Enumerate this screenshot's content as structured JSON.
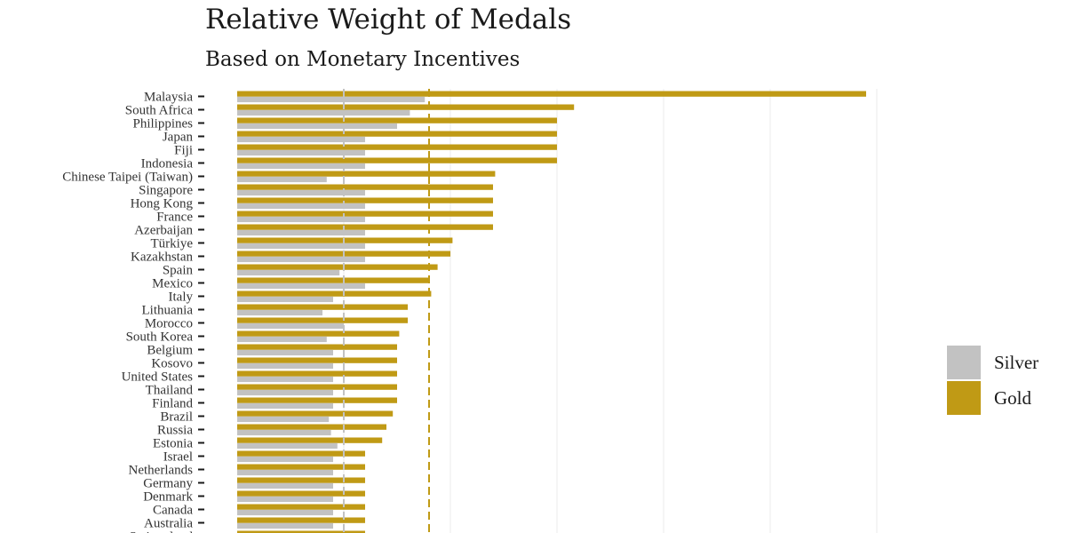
{
  "colors": {
    "gold": "#C09A15",
    "silver": "#C2C2C2",
    "grid": "#EBEBEB"
  },
  "chart_data": {
    "type": "bar",
    "orientation": "horizontal",
    "title": "Relative Weight of Medals",
    "subtitle": "Based on Monetary Incentives",
    "xlabel": "",
    "ylabel": "",
    "xlim": [
      0,
      3.05
    ],
    "grid": true,
    "legend_position": "right",
    "reference_lines": [
      {
        "series": "Silver",
        "value": 0.5,
        "style": "dashed"
      },
      {
        "series": "Gold",
        "value": 0.9,
        "style": "dashed"
      }
    ],
    "categories": [
      "Malaysia",
      "South Africa",
      "Philippines",
      "Japan",
      "Fiji",
      "Indonesia",
      "Chinese Taipei (Taiwan)",
      "Singapore",
      "Hong Kong",
      "France",
      "Azerbaijan",
      "Türkiye",
      "Kazakhstan",
      "Spain",
      "Mexico",
      "Italy",
      "Lithuania",
      "Morocco",
      "South Korea",
      "Belgium",
      "Kosovo",
      "United States",
      "Thailand",
      "Finland",
      "Brazil",
      "Russia",
      "Estonia",
      "Israel",
      "Netherlands",
      "Germany",
      "Denmark",
      "Canada",
      "Australia",
      "Switzerland"
    ],
    "series": [
      {
        "name": "Gold",
        "values": [
          2.95,
          1.58,
          1.5,
          1.5,
          1.5,
          1.5,
          1.21,
          1.2,
          1.2,
          1.2,
          1.2,
          1.01,
          1.0,
          0.94,
          0.9,
          0.91,
          0.8,
          0.8,
          0.76,
          0.75,
          0.75,
          0.75,
          0.75,
          0.75,
          0.73,
          0.7,
          0.68,
          0.6,
          0.6,
          0.6,
          0.6,
          0.6,
          0.6,
          0.6
        ]
      },
      {
        "name": "Silver",
        "values": [
          0.88,
          0.81,
          0.75,
          0.6,
          0.6,
          0.6,
          0.42,
          0.6,
          0.6,
          0.6,
          0.6,
          0.6,
          0.6,
          0.48,
          0.6,
          0.45,
          0.4,
          0.5,
          0.42,
          0.45,
          0.45,
          0.45,
          0.45,
          0.45,
          0.43,
          0.44,
          0.47,
          0.45,
          0.45,
          0.45,
          0.45,
          0.45,
          0.45,
          0.45
        ]
      }
    ]
  }
}
